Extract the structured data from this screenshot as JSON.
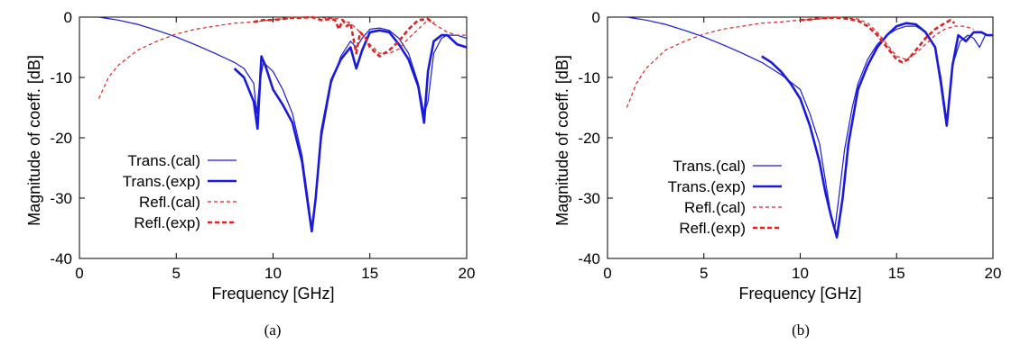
{
  "chart_data": [
    {
      "type": "line",
      "caption": "(a)",
      "xlabel": "Frequency [GHz]",
      "ylabel": "Magnitude of coeff. [dB]",
      "xlim": [
        0,
        20
      ],
      "ylim": [
        -40,
        0
      ],
      "xticks": [
        "0",
        "5",
        "10",
        "15",
        "20"
      ],
      "yticks": [
        "0",
        "-10",
        "-20",
        "-30",
        "-40"
      ],
      "grid": false,
      "legend_position": "bottom-left",
      "series": [
        {
          "name": "Trans.(cal)",
          "color": "#1a1adc",
          "style": "thin-solid",
          "x": [
            1,
            2,
            3,
            4,
            5,
            6,
            7,
            8,
            8.5,
            9,
            9.15,
            9.3,
            9.5,
            10,
            10.5,
            11,
            11.5,
            11.8,
            12,
            12.2,
            12.5,
            13,
            13.5,
            14,
            14.3,
            14.6,
            15,
            15.5,
            16,
            16.5,
            17,
            17.5,
            17.8,
            18,
            18.3,
            18.7,
            19,
            19.5,
            20
          ],
          "y": [
            0,
            -0.5,
            -1.2,
            -2.2,
            -3.3,
            -4.6,
            -6.0,
            -7.5,
            -8.5,
            -11,
            -16,
            -11,
            -7.5,
            -9,
            -12,
            -16,
            -23,
            -30,
            -35,
            -30,
            -20,
            -11,
            -6.5,
            -4,
            -5,
            -3.5,
            -2,
            -1.8,
            -2.2,
            -3.5,
            -6,
            -11,
            -16,
            -14,
            -6,
            -3.5,
            -3,
            -3,
            -3.5
          ]
        },
        {
          "name": "Trans.(exp)",
          "color": "#1a1adc",
          "style": "thick-solid",
          "x": [
            8,
            8.5,
            9,
            9.2,
            9.4,
            9.6,
            10,
            10.5,
            11,
            11.5,
            11.8,
            12,
            12.2,
            12.5,
            13,
            13.5,
            14,
            14.3,
            14.6,
            15,
            15.5,
            16,
            16.5,
            17,
            17.5,
            17.8,
            18,
            18.3,
            18.7,
            19,
            19.5,
            20
          ],
          "y": [
            -8.5,
            -10,
            -14,
            -18.5,
            -6.5,
            -8,
            -12,
            -14.5,
            -17.5,
            -24,
            -31,
            -35.5,
            -30,
            -19,
            -10.5,
            -7,
            -5,
            -8.5,
            -5.5,
            -2.5,
            -2.2,
            -2.5,
            -4.5,
            -7,
            -11.5,
            -17.5,
            -9,
            -4,
            -3,
            -3,
            -4.5,
            -5
          ]
        },
        {
          "name": "Refl.(cal)",
          "color": "#dd2222",
          "style": "thin-dashed",
          "x": [
            1,
            1.5,
            2,
            3,
            4,
            5,
            6,
            7,
            8,
            9,
            10,
            11,
            12,
            13,
            13.5,
            14,
            14.5,
            15,
            15.5,
            16,
            16.5,
            17,
            17.5,
            18,
            18.5,
            19,
            19.5,
            20
          ],
          "y": [
            -13.5,
            -10,
            -8,
            -5.5,
            -4,
            -2.8,
            -2,
            -1.5,
            -1,
            -0.8,
            -0.4,
            -0.2,
            0,
            -0.2,
            -0.3,
            -1,
            -2.5,
            -4.5,
            -6,
            -6,
            -5.3,
            -3.5,
            -2,
            -0.5,
            -1.5,
            -2.5,
            -3,
            -3
          ]
        },
        {
          "name": "Refl.(exp)",
          "color": "#dd2222",
          "style": "thick-dashed",
          "x": [
            9,
            9.5,
            10,
            10.5,
            11,
            11.5,
            12,
            12.5,
            13,
            13.2,
            13.4,
            13.6,
            13.8,
            14,
            14.3,
            14.5,
            14.8,
            15,
            15.5,
            16,
            16.5,
            17,
            17.5,
            18,
            18.3
          ],
          "y": [
            -0.8,
            -0.5,
            -0.5,
            -0.3,
            -0.1,
            -0.1,
            0,
            -0.5,
            -0.3,
            -0.5,
            -2,
            -0.5,
            -1.5,
            -1,
            -6,
            -2.5,
            -3.5,
            -5,
            -6.5,
            -5.5,
            -4,
            -2,
            -0.5,
            -0.3,
            -1
          ]
        }
      ]
    },
    {
      "type": "line",
      "caption": "(b)",
      "xlabel": "Frequency [GHz]",
      "ylabel": "Magnitude of coeff. [dB]",
      "xlim": [
        0,
        20
      ],
      "ylim": [
        -40,
        0
      ],
      "xticks": [
        "0",
        "5",
        "10",
        "15",
        "20"
      ],
      "yticks": [
        "0",
        "-10",
        "-20",
        "-30",
        "-40"
      ],
      "grid": false,
      "legend_position": "middle-left",
      "series": [
        {
          "name": "Trans.(cal)",
          "color": "#1a1adc",
          "style": "thin-solid",
          "x": [
            1,
            2,
            3,
            4,
            5,
            6,
            7,
            8,
            9,
            10,
            10.5,
            11,
            11.3,
            11.6,
            11.8,
            12,
            12.3,
            12.7,
            13,
            13.5,
            14,
            14.5,
            15,
            15.5,
            16,
            16.5,
            17,
            17.3,
            17.6,
            17.9,
            18.3,
            18.7,
            19,
            19.3,
            19.6,
            20
          ],
          "y": [
            0,
            -0.5,
            -1.2,
            -2.2,
            -3.3,
            -4.6,
            -6,
            -7.5,
            -9.5,
            -12,
            -16,
            -21,
            -27,
            -33,
            -35,
            -30,
            -22,
            -15,
            -11,
            -7,
            -4.5,
            -3,
            -2,
            -1.5,
            -1.5,
            -2.5,
            -5,
            -10,
            -17,
            -8,
            -4,
            -3,
            -3.5,
            -5,
            -3,
            -3
          ]
        },
        {
          "name": "Trans.(exp)",
          "color": "#1a1adc",
          "style": "thick-solid",
          "x": [
            8,
            8.5,
            9,
            9.5,
            10,
            10.5,
            11,
            11.3,
            11.6,
            11.9,
            12.2,
            12.5,
            13,
            13.5,
            14,
            14.5,
            15,
            15.5,
            16,
            16.5,
            17,
            17.3,
            17.6,
            17.9,
            18.2,
            18.6,
            19,
            19.4,
            19.7,
            20
          ],
          "y": [
            -6.5,
            -7.5,
            -9,
            -11,
            -13.5,
            -18,
            -24,
            -29,
            -33,
            -36.5,
            -30,
            -21,
            -12,
            -8,
            -5,
            -3,
            -1.5,
            -1,
            -1.2,
            -2.5,
            -5,
            -11,
            -18,
            -8,
            -3,
            -4,
            -2.5,
            -2.5,
            -3,
            -3
          ]
        },
        {
          "name": "Refl.(cal)",
          "color": "#dd2222",
          "style": "thin-dashed",
          "x": [
            1,
            1.5,
            2,
            3,
            4,
            5,
            6,
            7,
            8,
            9,
            10,
            11,
            12,
            13,
            13.5,
            14,
            14.5,
            15,
            15.5,
            16,
            16.5,
            17,
            17.5,
            18,
            18.5,
            19
          ],
          "y": [
            -15,
            -11,
            -8.5,
            -5.5,
            -4,
            -2.8,
            -2,
            -1.5,
            -1,
            -0.8,
            -0.5,
            -0.3,
            -0.1,
            -0.3,
            -1,
            -2.5,
            -4.5,
            -6.5,
            -7,
            -6,
            -4.5,
            -3,
            -2,
            -1.5,
            -1.5,
            -2
          ]
        },
        {
          "name": "Refl.(exp)",
          "color": "#dd2222",
          "style": "thick-dashed",
          "x": [
            10,
            10.5,
            11,
            11.5,
            12,
            12.5,
            13,
            13.5,
            14,
            14.5,
            15,
            15.3,
            15.6,
            16,
            16.5,
            17,
            17.5,
            17.8,
            18
          ],
          "y": [
            -0.5,
            -0.4,
            -0.2,
            -0.1,
            -0.1,
            -0.3,
            -0.6,
            -1.5,
            -3,
            -5,
            -7,
            -7.5,
            -7,
            -5.5,
            -3.5,
            -2,
            -1,
            -0.5,
            -1
          ]
        }
      ]
    }
  ]
}
